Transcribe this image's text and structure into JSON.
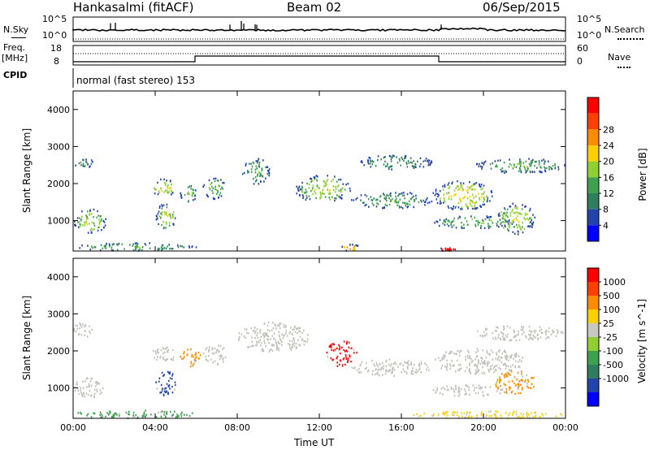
{
  "header": {
    "radar": "Hankasalmi (fitACF)",
    "beam": "Beam 02",
    "date": "06/Sep/2015"
  },
  "strip": {
    "nsky_label": "N.Sky",
    "nsky_ticks": [
      "10^5",
      "10^0"
    ],
    "nsearch_label": "N.Search",
    "nsearch_ticks": [
      "10^5",
      "10^0"
    ],
    "freq_label_1": "Freq.",
    "freq_label_2": "[MHz]",
    "freq_ticks": [
      "18",
      "8"
    ],
    "nave_label": "Nave",
    "nave_ticks": [
      "60",
      "0"
    ],
    "cpid_label": "CPID",
    "cpid_text": "normal (fast stereo) 153"
  },
  "colors": {
    "power": [
      "#0000ff",
      "#2244aa",
      "#2f7f5f",
      "#3fa050",
      "#8fcf30",
      "#ffd000",
      "#ff8c00",
      "#ff4000",
      "#ff0000"
    ],
    "velocity": [
      "#0000ff",
      "#2244aa",
      "#2f7f5f",
      "#3fa050",
      "#8fcf30",
      "#c8c8c0",
      "#ffd000",
      "#ff8c00",
      "#ff4000",
      "#ff0000"
    ],
    "ground_scatter": "#c0c0b8"
  },
  "chart_data": [
    {
      "type": "heatmap",
      "title": "",
      "xlabel": "Time UT",
      "ylabel": "Slant Range [km]",
      "x_ticks": [
        "00:00",
        "04:00",
        "08:00",
        "12:00",
        "16:00",
        "20:00",
        "00:00"
      ],
      "xlim": [
        0,
        24
      ],
      "y_ticks": [
        "1000",
        "2000",
        "3000",
        "4000"
      ],
      "ylim": [
        180,
        4500
      ],
      "colorbar_label": "Power [dB]",
      "colorbar_ticks": [
        "4",
        "8",
        "12",
        "16",
        "20",
        "24",
        "28"
      ],
      "colorbar_range": [
        0,
        30
      ],
      "echo_regions": [
        {
          "t": [
            0.0,
            1.6
          ],
          "r": [
            650,
            1350
          ],
          "level": 12
        },
        {
          "t": [
            0.0,
            1.0
          ],
          "r": [
            2450,
            2700
          ],
          "level": 6
        },
        {
          "t": [
            0.0,
            6.0
          ],
          "r": [
            200,
            420
          ],
          "level": 8
        },
        {
          "t": [
            3.8,
            5.0
          ],
          "r": [
            1650,
            2150
          ],
          "level": 14
        },
        {
          "t": [
            4.0,
            5.0
          ],
          "r": [
            750,
            1500
          ],
          "level": 12
        },
        {
          "t": [
            5.2,
            6.0
          ],
          "r": [
            1500,
            2000
          ],
          "level": 10
        },
        {
          "t": [
            6.3,
            7.4
          ],
          "r": [
            1600,
            2200
          ],
          "level": 10
        },
        {
          "t": [
            8.2,
            9.6
          ],
          "r": [
            2000,
            2700
          ],
          "level": 8
        },
        {
          "t": [
            10.8,
            13.5
          ],
          "r": [
            1500,
            2250
          ],
          "level": 12
        },
        {
          "t": [
            13.5,
            17.5
          ],
          "r": [
            1350,
            1800
          ],
          "level": 8
        },
        {
          "t": [
            14.0,
            17.5
          ],
          "r": [
            2400,
            2800
          ],
          "level": 6
        },
        {
          "t": [
            17.5,
            20.5
          ],
          "r": [
            1300,
            2100
          ],
          "level": 14
        },
        {
          "t": [
            17.5,
            21.5
          ],
          "r": [
            800,
            1150
          ],
          "level": 10
        },
        {
          "t": [
            19.5,
            24.0
          ],
          "r": [
            2300,
            2700
          ],
          "level": 8
        },
        {
          "t": [
            20.5,
            22.5
          ],
          "r": [
            650,
            1500
          ],
          "level": 12
        },
        {
          "t": [
            13.0,
            14.0
          ],
          "r": [
            200,
            380
          ],
          "level": 18
        },
        {
          "t": [
            17.8,
            18.6
          ],
          "r": [
            200,
            300
          ],
          "level": 29
        }
      ]
    },
    {
      "type": "heatmap",
      "title": "",
      "xlabel": "Time UT",
      "ylabel": "Slant Range [km]",
      "x_ticks": [
        "00:00",
        "04:00",
        "08:00",
        "12:00",
        "16:00",
        "20:00",
        "00:00"
      ],
      "xlim": [
        0,
        24
      ],
      "y_ticks": [
        "1000",
        "2000",
        "3000",
        "4000"
      ],
      "ylim": [
        180,
        4500
      ],
      "colorbar_label": "Velocity [m s^-1]",
      "colorbar_ticks": [
        "1000",
        "500",
        "100",
        "25",
        "-25",
        "-100",
        "-500",
        "-1000"
      ],
      "echo_regions": [
        {
          "t": [
            0.0,
            1.5
          ],
          "r": [
            750,
            1300
          ],
          "class": "gs"
        },
        {
          "t": [
            0.0,
            1.0
          ],
          "r": [
            2400,
            2800
          ],
          "class": "gs"
        },
        {
          "t": [
            0.0,
            6.0
          ],
          "r": [
            200,
            420
          ],
          "class": "v100"
        },
        {
          "t": [
            3.8,
            5.0
          ],
          "r": [
            1700,
            2150
          ],
          "class": "gs"
        },
        {
          "t": [
            4.0,
            5.0
          ],
          "r": [
            800,
            1500
          ],
          "class": "v500"
        },
        {
          "t": [
            5.2,
            6.2
          ],
          "r": [
            1600,
            2100
          ],
          "class": "vm100"
        },
        {
          "t": [
            6.3,
            7.5
          ],
          "r": [
            1650,
            2200
          ],
          "class": "gs"
        },
        {
          "t": [
            8.0,
            11.5
          ],
          "r": [
            2000,
            2800
          ],
          "class": "gs"
        },
        {
          "t": [
            12.3,
            13.8
          ],
          "r": [
            1600,
            2300
          ],
          "class": "vm1000"
        },
        {
          "t": [
            13.5,
            17.5
          ],
          "r": [
            1350,
            1800
          ],
          "class": "gs"
        },
        {
          "t": [
            17.5,
            22.0
          ],
          "r": [
            1400,
            2100
          ],
          "class": "gs"
        },
        {
          "t": [
            17.5,
            21.0
          ],
          "r": [
            800,
            1100
          ],
          "class": "gs"
        },
        {
          "t": [
            20.5,
            22.5
          ],
          "r": [
            850,
            1500
          ],
          "class": "vm100"
        },
        {
          "t": [
            19.5,
            24.0
          ],
          "r": [
            2300,
            2700
          ],
          "class": "gs"
        },
        {
          "t": [
            16.0,
            24.0
          ],
          "r": [
            200,
            400
          ],
          "class": "vm25"
        }
      ]
    }
  ]
}
